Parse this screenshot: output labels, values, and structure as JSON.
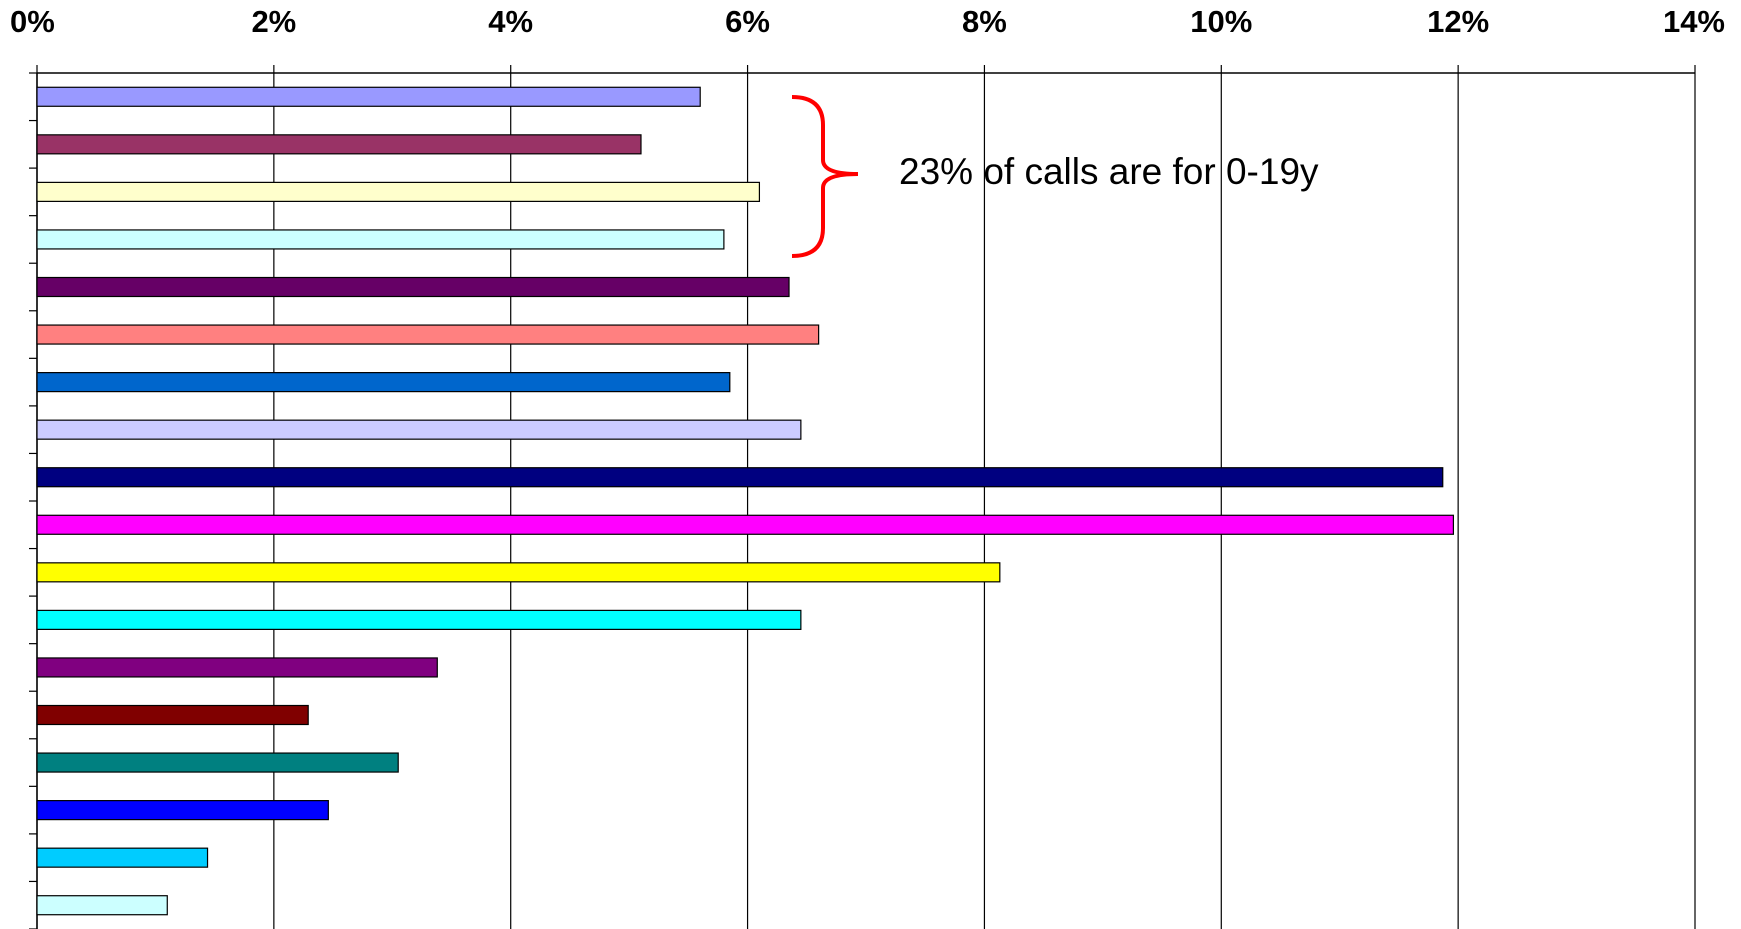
{
  "chart_data": {
    "type": "barh",
    "annotation": "23% of calls are for 0-19y",
    "categories": [
      null,
      null,
      null,
      null,
      null,
      null,
      null,
      null,
      null,
      null,
      null,
      null,
      null,
      null,
      null,
      null,
      null,
      null
    ],
    "values": [
      5.6,
      5.1,
      6.1,
      5.8,
      6.35,
      6.6,
      5.85,
      6.45,
      11.87,
      11.96,
      8.13,
      6.45,
      3.38,
      2.29,
      3.05,
      2.46,
      1.44,
      1.1
    ],
    "colors": [
      "#9999ff",
      "#993366",
      "#ffffcc",
      "#ccffff",
      "#660066",
      "#ff8080",
      "#0066cc",
      "#ccccff",
      "#000080",
      "#ff00ff",
      "#ffff00",
      "#00ffff",
      "#800080",
      "#800000",
      "#008080",
      "#0000ff",
      "#00ccff",
      "#ccffff"
    ],
    "xlim": [
      0,
      14
    ],
    "xticks": [
      {
        "value": 0,
        "label": "0%"
      },
      {
        "value": 2,
        "label": "2%"
      },
      {
        "value": 4,
        "label": "4%"
      },
      {
        "value": 6,
        "label": "6%"
      },
      {
        "value": 8,
        "label": "8%"
      },
      {
        "value": 10,
        "label": "10%"
      },
      {
        "value": 12,
        "label": "12%"
      },
      {
        "value": 14,
        "label": "14%"
      }
    ],
    "grid": true
  }
}
